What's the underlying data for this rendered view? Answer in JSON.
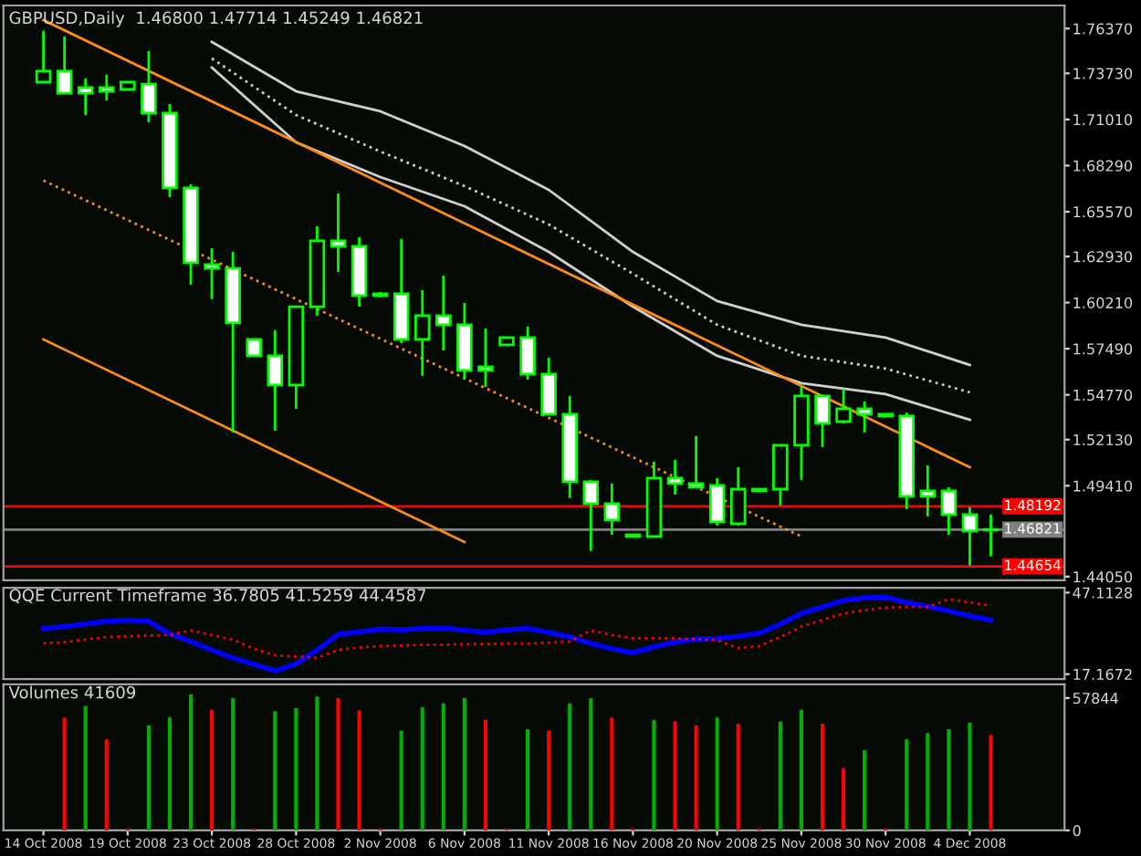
{
  "chart_data": [
    {
      "type": "candlestick",
      "title": "GBPUSD,Daily  1.46800 1.47714 1.45249 1.46821",
      "tick_labels": "y",
      "color": "#00ff00",
      "categories": [
        "14 Oct 2008",
        null,
        null,
        null,
        "19 Oct 2008",
        null,
        null,
        null,
        "23 Oct 2008",
        null,
        null,
        null,
        "28 Oct 2008",
        null,
        null,
        null,
        "2 Nov 2008",
        null,
        null,
        null,
        "6 Nov 2008",
        null,
        null,
        null,
        "11 Nov 2008",
        null,
        null,
        null,
        "16 Nov 2008",
        null,
        null,
        null,
        "20 Nov 2008",
        null,
        null,
        null,
        "25 Nov 2008",
        null,
        null,
        null,
        "30 Nov 2008",
        null,
        null,
        null,
        "4 Dec 2008",
        null
      ],
      "ohlc": [
        [
          1.7321,
          1.7622,
          1.7321,
          1.7386
        ],
        [
          1.7386,
          1.759,
          1.7256,
          1.7256
        ],
        [
          1.7289,
          1.7342,
          1.7127,
          1.7256
        ],
        [
          1.7289,
          1.7364,
          1.7213,
          1.7267
        ],
        [
          1.7278,
          1.7321,
          1.7278,
          1.7321
        ],
        [
          1.731,
          1.7504,
          1.7084,
          1.7138
        ],
        [
          1.7138,
          1.7192,
          1.6643,
          1.6697
        ],
        [
          1.6697,
          1.6718,
          1.6127,
          1.6256
        ],
        [
          1.6245,
          1.6342,
          1.6041,
          1.6223
        ],
        [
          1.6223,
          1.632,
          1.5255,
          1.5901
        ],
        [
          1.5804,
          1.5804,
          1.5707,
          1.5707
        ],
        [
          1.5707,
          1.5858,
          1.5266,
          1.5535
        ],
        [
          1.5535,
          1.5997,
          1.5395,
          1.5997
        ],
        [
          1.5997,
          1.6471,
          1.5944,
          1.6385
        ],
        [
          1.6385,
          1.6665,
          1.6202,
          1.6353
        ],
        [
          1.6353,
          1.6406,
          1.5997,
          1.6062
        ],
        [
          1.6073,
          1.6084,
          1.6051,
          1.6062
        ],
        [
          1.6073,
          1.6396,
          1.5782,
          1.5804
        ],
        [
          1.5804,
          1.6094,
          1.5589,
          1.5944
        ],
        [
          1.5944,
          1.618,
          1.5739,
          1.589
        ],
        [
          1.589,
          1.6019,
          1.5567,
          1.5621
        ],
        [
          1.5642,
          1.5868,
          1.5524,
          1.5621
        ],
        [
          1.5772,
          1.5815,
          1.5772,
          1.5815
        ],
        [
          1.5815,
          1.5879,
          1.5567,
          1.5599
        ],
        [
          1.5599,
          1.5696,
          1.5363,
          1.5363
        ],
        [
          1.5363,
          1.547,
          1.4868,
          1.4965
        ],
        [
          1.4965,
          1.4975,
          1.4556,
          1.4835
        ],
        [
          1.4835,
          1.4954,
          1.4652,
          1.4739
        ],
        [
          1.4642,
          1.4652,
          1.4642,
          1.4652
        ],
        [
          1.4642,
          1.5083,
          1.4642,
          1.4986
        ],
        [
          1.4986,
          1.5094,
          1.4889,
          1.4954
        ],
        [
          1.4954,
          1.5234,
          1.4932,
          1.4932
        ],
        [
          1.4943,
          1.4986,
          1.4706,
          1.4728
        ],
        [
          1.4717,
          1.5051,
          1.4706,
          1.4921
        ],
        [
          1.4911,
          1.4921,
          1.4911,
          1.4921
        ],
        [
          1.4921,
          1.518,
          1.4825,
          1.518
        ],
        [
          1.518,
          1.5524,
          1.4975,
          1.547
        ],
        [
          1.547,
          1.547,
          1.5169,
          1.5309
        ],
        [
          1.532,
          1.5513,
          1.5309,
          1.5395
        ],
        [
          1.5395,
          1.5438,
          1.5255,
          1.5363
        ],
        [
          1.5363,
          1.5363,
          1.5352,
          1.5352
        ],
        [
          1.5352,
          1.5373,
          1.4803,
          1.4878
        ],
        [
          1.4911,
          1.5061,
          1.476,
          1.4878
        ],
        [
          1.4911,
          1.4932,
          1.4652,
          1.4771
        ],
        [
          1.4771,
          1.4814,
          1.447,
          1.4674
        ],
        [
          1.468,
          1.47714,
          1.45249,
          1.46821
        ]
      ],
      "series": [
        {
          "type": "line",
          "color": "#d0d0d0",
          "line_style": "solid",
          "x": [
            "23 Oct 2008",
            "28 Oct 2008",
            "2 Nov 2008",
            "6 Nov 2008",
            "11 Nov 2008",
            "16 Nov 2008",
            "20 Nov 2008",
            "25 Nov 2008",
            "30 Nov 2008",
            "4 Dec 2008"
          ],
          "values": [
            1.7558,
            1.7267,
            1.7149,
            1.6944,
            1.6686,
            1.632,
            1.603,
            1.589,
            1.5815,
            1.5653
          ]
        },
        {
          "type": "line",
          "color": "#d0d0d0",
          "line_style": "dotted",
          "x": [
            "23 Oct 2008",
            "28 Oct 2008",
            "2 Nov 2008",
            "6 Nov 2008",
            "11 Nov 2008",
            "16 Nov 2008",
            "20 Nov 2008",
            "25 Nov 2008",
            "30 Nov 2008",
            "4 Dec 2008"
          ],
          "values": [
            1.7461,
            1.7127,
            1.6912,
            1.6708,
            1.6482,
            1.6191,
            1.589,
            1.5707,
            1.5632,
            1.5492
          ]
        },
        {
          "type": "line",
          "color": "#d0d0d0",
          "line_style": "solid",
          "x": [
            "23 Oct 2008",
            "28 Oct 2008",
            "2 Nov 2008",
            "6 Nov 2008",
            "11 Nov 2008",
            "16 Nov 2008",
            "20 Nov 2008",
            "25 Nov 2008",
            "30 Nov 2008",
            "4 Dec 2008"
          ],
          "values": [
            1.7407,
            1.6966,
            1.6761,
            1.6589,
            1.632,
            1.5997,
            1.5707,
            1.5546,
            1.5481,
            1.533
          ]
        },
        {
          "type": "line",
          "color": "#ff8c1a",
          "line_style": "solid",
          "x": [
            "14 Oct 2008",
            "4 Dec 2008"
          ],
          "values": [
            1.7687,
            1.505
          ]
        },
        {
          "type": "line",
          "color": "#ff8c1a",
          "line_style": "dotted",
          "x": [
            "14 Oct 2008",
            "25 Nov 2008"
          ],
          "values": [
            1.6741,
            1.4642
          ]
        },
        {
          "type": "line",
          "color": "#ff8c1a",
          "line_style": "solid",
          "x": [
            "14 Oct 2008",
            "6 Nov 2008"
          ],
          "values": [
            1.5804,
            1.4609
          ]
        }
      ],
      "ref_lines": [
        {
          "axis": "y",
          "value": 1.48192,
          "label": "1.48192",
          "color": "#ff0000"
        },
        {
          "axis": "y",
          "value": 1.46821,
          "label": "1.46821",
          "color": "#808080"
        },
        {
          "axis": "y",
          "value": 1.44654,
          "label": "1.44654",
          "color": "#ff0000"
        }
      ],
      "ylim": [
        1.4383,
        1.7773
      ],
      "yticks": [
        {
          "value": 1.7637,
          "label": "1.76370"
        },
        {
          "value": 1.7373,
          "label": "1.73730"
        },
        {
          "value": 1.7101,
          "label": "1.71010"
        },
        {
          "value": 1.6829,
          "label": "1.68290"
        },
        {
          "value": 1.6557,
          "label": "1.65570"
        },
        {
          "value": 1.6293,
          "label": "1.62930"
        },
        {
          "value": 1.6021,
          "label": "1.60210"
        },
        {
          "value": 1.5749,
          "label": "1.57490"
        },
        {
          "value": 1.5477,
          "label": "1.54770"
        },
        {
          "value": 1.5213,
          "label": "1.52130"
        },
        {
          "value": 1.4941,
          "label": "1.49410"
        },
        {
          "value": 1.4405,
          "label": "1.44050"
        }
      ]
    },
    {
      "type": "line",
      "title": "QQE Current Timeframe 36.7805 41.5259 44.4587",
      "tick_labels": "y",
      "categories": [
        "14 Oct 2008",
        null,
        null,
        null,
        "19 Oct 2008",
        null,
        null,
        null,
        "23 Oct 2008",
        null,
        null,
        null,
        "28 Oct 2008",
        null,
        null,
        null,
        "2 Nov 2008",
        null,
        null,
        null,
        "6 Nov 2008",
        null,
        null,
        null,
        "11 Nov 2008",
        null,
        null,
        null,
        "16 Nov 2008",
        null,
        null,
        null,
        "20 Nov 2008",
        null,
        null,
        null,
        "25 Nov 2008",
        null,
        null,
        null,
        "30 Nov 2008",
        null,
        null,
        null,
        "4 Dec 2008",
        null
      ],
      "series": [
        {
          "color": "#0000ff",
          "line_style": "solid",
          "values": [
            33.94,
            34.65,
            35.61,
            36.57,
            37.05,
            36.57,
            32.02,
            29.15,
            26.03,
            23.16,
            20.76,
            18.37,
            21.0,
            26.03,
            31.78,
            32.74,
            33.7,
            33.46,
            33.94,
            34.18,
            33.22,
            32.5,
            33.46,
            33.94,
            32.5,
            30.82,
            28.43,
            26.51,
            25.07,
            27.23,
            28.91,
            30.1,
            30.34,
            31.06,
            32.26,
            35.61,
            39.45,
            41.84,
            44.24,
            45.2,
            45.44,
            43.52,
            42.08,
            40.4,
            38.49,
            37.05
          ]
        },
        {
          "color": "#ff0000",
          "line_style": "dotted",
          "values": [
            28.43,
            28.91,
            29.86,
            30.82,
            31.06,
            31.3,
            31.54,
            33.22,
            31.54,
            29.86,
            26.51,
            24.11,
            23.64,
            23.16,
            26.03,
            26.99,
            27.47,
            27.71,
            27.95,
            27.95,
            28.19,
            28.19,
            28.43,
            28.43,
            28.67,
            29.15,
            33.22,
            31.54,
            30.34,
            30.34,
            30.34,
            30.1,
            29.62,
            26.75,
            27.47,
            30.82,
            34.65,
            37.05,
            39.45,
            40.64,
            41.6,
            41.84,
            41.84,
            44.72,
            43.52,
            42.32
          ]
        }
      ],
      "ylim": [
        15.4,
        48.9
      ],
      "yticks": [
        17.1672,
        47.1128
      ]
    },
    {
      "type": "bar",
      "title": "Volumes 41609",
      "categories": [
        "14 Oct 2008",
        null,
        null,
        null,
        "19 Oct 2008",
        null,
        null,
        null,
        "23 Oct 2008",
        null,
        null,
        null,
        "28 Oct 2008",
        null,
        null,
        null,
        "2 Nov 2008",
        null,
        null,
        null,
        "6 Nov 2008",
        null,
        null,
        null,
        "11 Nov 2008",
        null,
        null,
        null,
        "16 Nov 2008",
        null,
        null,
        null,
        "20 Nov 2008",
        null,
        null,
        null,
        "25 Nov 2008",
        null,
        null,
        null,
        "30 Nov 2008",
        null,
        null,
        null,
        "4 Dec 2008",
        null
      ],
      "values": [
        null,
        49300,
        54400,
        39800,
        700,
        45900,
        49300,
        59500,
        52700,
        57800,
        700,
        52100,
        53400,
        58500,
        57800,
        52400,
        700,
        43600,
        53800,
        55500,
        57800,
        48300,
        700,
        44200,
        43600,
        55500,
        57800,
        49300,
        700,
        48300,
        47600,
        45900,
        49300,
        46600,
        700,
        47600,
        52700,
        46600,
        27200,
        35000,
        700,
        39800,
        42500,
        44200,
        47000,
        41609
      ],
      "colors": [
        "#00b000",
        "#ff0000",
        "#00b000",
        "#ff0000",
        "#ff0000",
        "#00b000",
        "#00b000",
        "#00b000",
        "#ff0000",
        "#00b000",
        "#ff0000",
        "#00b000",
        "#00b000",
        "#00b000",
        "#ff0000",
        "#ff0000",
        "#ff0000",
        "#00b000",
        "#00b000",
        "#00b000",
        "#00b000",
        "#ff0000",
        "#ff0000",
        "#00b000",
        "#ff0000",
        "#00b000",
        "#00b000",
        "#ff0000",
        "#ff0000",
        "#00b000",
        "#ff0000",
        "#ff0000",
        "#00b000",
        "#ff0000",
        "#ff0000",
        "#00b000",
        "#00b000",
        "#ff0000",
        "#ff0000",
        "#00b000",
        "#ff0000",
        "#00b000",
        "#00b000",
        "#00b000",
        "#00b000",
        "#ff0000"
      ],
      "ylim": [
        0,
        63800
      ],
      "yticks": [
        0,
        57844
      ]
    }
  ]
}
